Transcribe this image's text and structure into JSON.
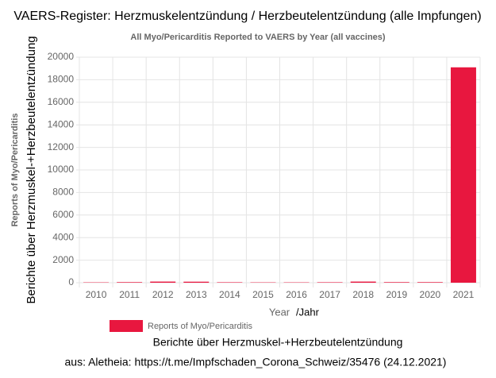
{
  "chart_data": {
    "type": "bar",
    "title": "VAERS-Register: Herzmuskelentzündung / Herzbeutelentzündung (alle Impfungen)",
    "subtitle": "All Myo/Pericarditis Reported to VAERS by Year (all vaccines)",
    "y_label": "Reports of Myo/Pericarditis",
    "y_label_de": "Berichte über Herzmuskel-+Herzbeutelentzündung",
    "x_label": "Year",
    "x_label_de": "/Jahr",
    "legend_note": "Berichte über Herzmuskel-+Herzbeutelentzündung",
    "source": "aus: Aletheia: https://t.me/Impfschaden_Corona_Schweiz/35476 (24.12.2021)",
    "categories": [
      "2010",
      "2011",
      "2012",
      "2013",
      "2014",
      "2015",
      "2016",
      "2017",
      "2018",
      "2019",
      "2020",
      "2021"
    ],
    "series": [
      {
        "name": "Reports of Myo/Pericarditis",
        "color": "#e8173f",
        "values": [
          30,
          50,
          100,
          90,
          40,
          30,
          30,
          40,
          100,
          50,
          50,
          19100
        ]
      }
    ],
    "ylim": [
      0,
      20000
    ],
    "yticks": [
      0,
      2000,
      4000,
      6000,
      8000,
      10000,
      12000,
      14000,
      16000,
      18000,
      20000
    ],
    "grid": true
  }
}
